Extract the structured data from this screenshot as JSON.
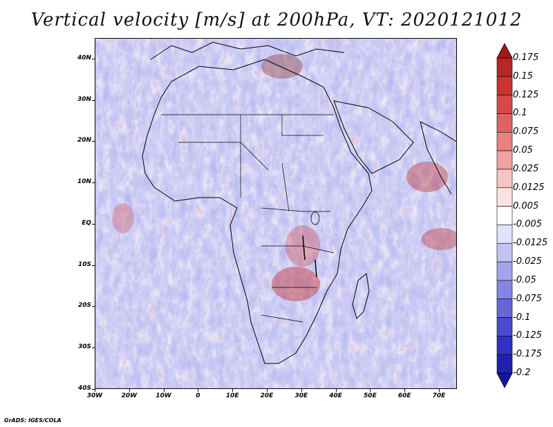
{
  "title": "Vertical velocity [m/s] at 200hPa, VT: 2020121012",
  "credit": "GrADS: IGES/COLA",
  "lat_labels": [
    "40N",
    "30N",
    "20N",
    "10N",
    "EQ",
    "10S",
    "20S",
    "30S",
    "40S"
  ],
  "lon_labels": [
    "30W",
    "20W",
    "10W",
    "0",
    "10E",
    "20E",
    "30E",
    "40E",
    "50E",
    "60E",
    "70E"
  ],
  "colorbar": {
    "levels": [
      "0.175",
      "0.15",
      "0.125",
      "0.1",
      "0.075",
      "0.05",
      "0.025",
      "0.0125",
      "0.005",
      "-0.005",
      "-0.0125",
      "-0.025",
      "-0.05",
      "-0.075",
      "-0.1",
      "-0.125",
      "-0.175",
      "-0.2"
    ],
    "colors": [
      "#a01a1a",
      "#b82626",
      "#cc3333",
      "#d94848",
      "#e26262",
      "#ea8080",
      "#f0a0a0",
      "#f6c4c4",
      "#fbe2e2",
      "#ffffff",
      "#e2e2fb",
      "#c4c4f4",
      "#a4a4ec",
      "#8484e2",
      "#6666d8",
      "#4a4ad0",
      "#3232c4",
      "#2020b0",
      "#16169c"
    ]
  }
}
